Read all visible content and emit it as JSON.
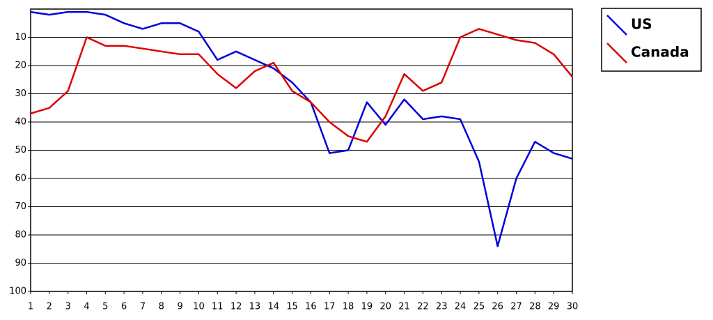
{
  "chart_data": {
    "type": "line",
    "x": [
      1,
      2,
      3,
      4,
      5,
      6,
      7,
      8,
      9,
      10,
      11,
      12,
      13,
      14,
      15,
      16,
      17,
      18,
      19,
      20,
      21,
      22,
      23,
      24,
      25,
      26,
      27,
      28,
      29,
      30
    ],
    "xlim": [
      1,
      30
    ],
    "xticks": [
      1,
      2,
      3,
      4,
      5,
      6,
      7,
      8,
      9,
      10,
      11,
      12,
      13,
      14,
      15,
      16,
      17,
      18,
      19,
      20,
      21,
      22,
      23,
      24,
      25,
      26,
      27,
      28,
      29,
      30
    ],
    "ylim": [
      0,
      100
    ],
    "yticks": [
      10,
      20,
      30,
      40,
      50,
      60,
      70,
      80,
      90,
      100
    ],
    "y_inverted": true,
    "grid": true,
    "legend": "right",
    "series": [
      {
        "name": "US",
        "color": "#0000dd",
        "values": [
          1,
          2,
          1,
          1,
          2,
          5,
          7,
          5,
          5,
          8,
          18,
          15,
          18,
          21,
          26,
          33,
          51,
          50,
          33,
          41,
          32,
          39,
          38,
          39,
          54,
          84,
          60,
          47,
          51,
          53
        ]
      },
      {
        "name": "Canada",
        "color": "#dd0000",
        "values": [
          37,
          35,
          29,
          10,
          13,
          13,
          14,
          15,
          16,
          16,
          23,
          28,
          22,
          19,
          29,
          33,
          40,
          45,
          47,
          38,
          23,
          29,
          26,
          10,
          7,
          9,
          11,
          12,
          16,
          24
        ]
      }
    ]
  }
}
